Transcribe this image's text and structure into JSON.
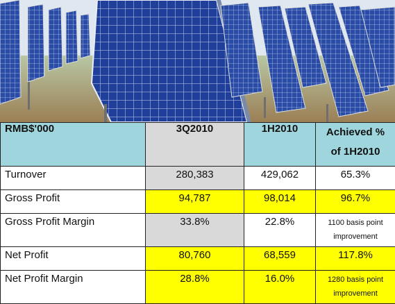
{
  "table": {
    "headers": {
      "label": "RMB$'000",
      "col1": "3Q2010",
      "col2": "1H2010",
      "col3": "Achieved % of 1H2010"
    },
    "rows": {
      "turnover": {
        "label": "Turnover",
        "q3": "280,383",
        "h1": "429,062",
        "achieved": "65.3%"
      },
      "gross_profit": {
        "label": "Gross Profit",
        "q3": "94,787",
        "h1": "98,014",
        "achieved": "96.7%"
      },
      "gross_profit_margin": {
        "label": "Gross Profit Margin",
        "q3": "33.8%",
        "h1": "22.8%",
        "achieved": "1100 basis point improvement"
      },
      "net_profit": {
        "label": "Net Profit",
        "q3": "80,760",
        "h1": "68,559",
        "achieved": "117.8%"
      },
      "net_profit_margin": {
        "label": "Net Profit Margin",
        "q3": "28.8%",
        "h1": "16.0%",
        "achieved": "1280 basis point improvement"
      }
    }
  },
  "colors": {
    "header_bg": "#9fd6de",
    "highlight_yellow": "#ffff00",
    "neutral_grey": "#d9d9d9",
    "panel_blue": "#1f3f9a"
  },
  "image": {
    "subject": "solar-panel-array-photo"
  }
}
